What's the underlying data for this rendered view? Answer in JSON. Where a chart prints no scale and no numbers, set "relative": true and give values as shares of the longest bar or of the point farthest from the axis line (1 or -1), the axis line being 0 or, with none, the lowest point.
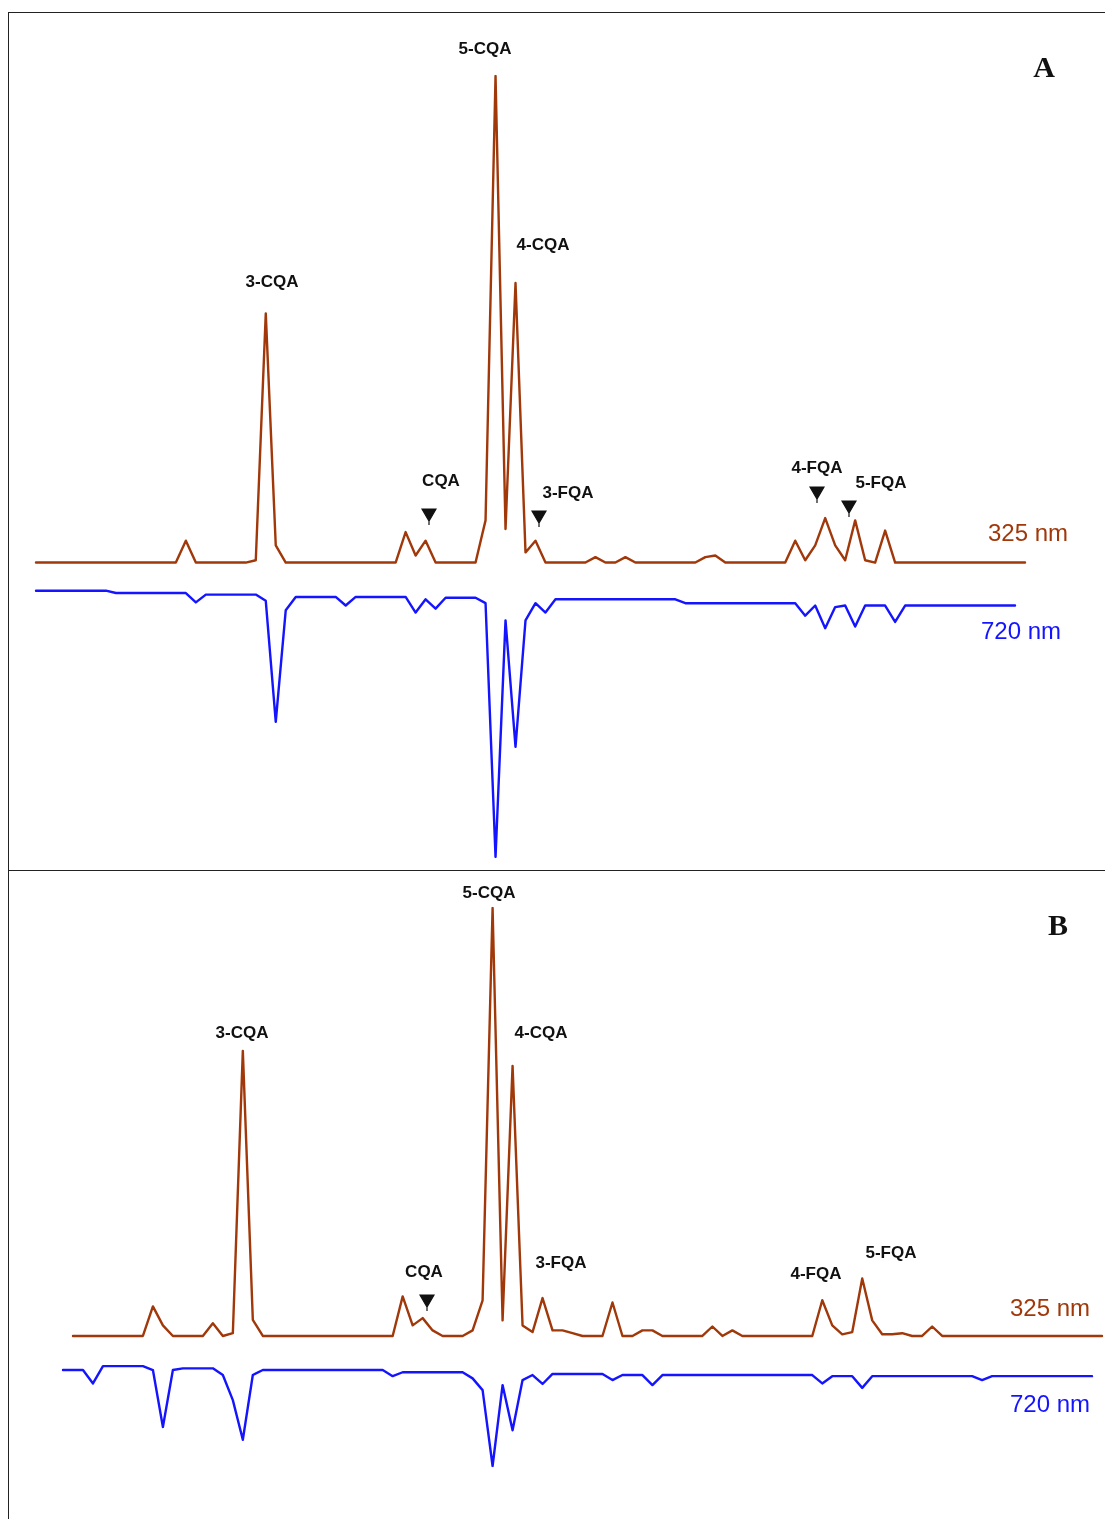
{
  "chart_data": [
    {
      "type": "line",
      "title": "A",
      "relative": true,
      "annotations": [
        "5-CQA",
        "3-CQA",
        "4-CQA",
        "CQA",
        "3-FQA",
        "4-FQA",
        "5-FQA"
      ],
      "categories": [
        null,
        null,
        null,
        null,
        null,
        null,
        null,
        null,
        null,
        null,
        null,
        null,
        null,
        null,
        null,
        null,
        null,
        null,
        null,
        null,
        null,
        null,
        null,
        null,
        null,
        null,
        null,
        null,
        null,
        null,
        null,
        null,
        null,
        null,
        null,
        null,
        null,
        null,
        null,
        null,
        null,
        null,
        null,
        null,
        null,
        null,
        null,
        null,
        null,
        null,
        null,
        null,
        null,
        null,
        null,
        null,
        null,
        null,
        null,
        null,
        null,
        null,
        null,
        null,
        null,
        null,
        null,
        null,
        null,
        null,
        null,
        null,
        null,
        null,
        null,
        null,
        null,
        null,
        null,
        null,
        null,
        null,
        null,
        null,
        null,
        null,
        null,
        null,
        null,
        null,
        null,
        null,
        null,
        null,
        null,
        null,
        null,
        null,
        null,
        null
      ],
      "series": [
        {
          "name": "325 nm",
          "color": "#a0380a",
          "values": [
            0.377,
            0.377,
            0.377,
            0.377,
            0.377,
            0.377,
            0.377,
            0.377,
            0.377,
            0.377,
            0.377,
            0.377,
            0.377,
            0.377,
            0.377,
            0.405,
            0.377,
            0.377,
            0.377,
            0.377,
            0.377,
            0.377,
            0.38,
            0.696,
            0.399,
            0.377,
            0.377,
            0.377,
            0.377,
            0.377,
            0.377,
            0.377,
            0.377,
            0.377,
            0.377,
            0.377,
            0.377,
            0.416,
            0.386,
            0.405,
            0.377,
            0.377,
            0.377,
            0.377,
            0.377,
            0.431,
            1,
            0.42,
            0.735,
            0.39,
            0.405,
            0.377,
            0.377,
            0.377,
            0.377,
            0.377,
            0.384,
            0.377,
            0.377,
            0.384,
            0.377,
            0.377,
            0.377,
            0.377,
            0.377,
            0.377,
            0.377,
            0.384,
            0.386,
            0.377,
            0.377,
            0.377,
            0.377,
            0.377,
            0.377,
            0.377,
            0.405,
            0.38,
            0.399,
            0.434,
            0.399,
            0.38,
            0.431,
            0.38,
            0.377,
            0.418,
            0.377,
            0.377,
            0.377,
            0.377,
            0.377,
            0.377,
            0.377,
            0.377,
            0.377,
            0.377,
            0.377,
            0.377,
            0.377,
            0.377
          ]
        },
        {
          "name": "720 nm",
          "color": "#1414ff",
          "values": [
            0.341,
            0.341,
            0.341,
            0.341,
            0.341,
            0.341,
            0.341,
            0.341,
            0.338,
            0.338,
            0.338,
            0.338,
            0.338,
            0.338,
            0.338,
            0.338,
            0.326,
            0.336,
            0.336,
            0.336,
            0.336,
            0.336,
            0.336,
            0.328,
            0.173,
            0.316,
            0.333,
            0.333,
            0.333,
            0.333,
            0.333,
            0.322,
            0.333,
            0.333,
            0.333,
            0.333,
            0.333,
            0.333,
            0.313,
            0.33,
            0.318,
            0.332,
            0.332,
            0.332,
            0.332,
            0.325,
            0,
            0.303,
            0.141,
            0.303,
            0.325,
            0.313,
            0.33,
            0.33,
            0.33,
            0.33,
            0.33,
            0.33,
            0.33,
            0.33,
            0.33,
            0.33,
            0.33,
            0.33,
            0.33,
            0.325,
            0.325,
            0.325,
            0.325,
            0.325,
            0.325,
            0.325,
            0.325,
            0.325,
            0.325,
            0.325,
            0.325,
            0.309,
            0.322,
            0.293,
            0.32,
            0.322,
            0.295,
            0.322,
            0.322,
            0.322,
            0.301,
            0.322,
            0.322,
            0.322,
            0.322,
            0.322,
            0.322,
            0.322,
            0.322,
            0.322,
            0.322,
            0.322,
            0.322,
            null
          ]
        }
      ]
    },
    {
      "type": "line",
      "title": "B",
      "relative": true,
      "annotations": [
        "5-CQA",
        "3-CQA",
        "4-CQA",
        "CQA",
        "3-FQA",
        "4-FQA",
        "5-FQA"
      ],
      "categories": [
        null,
        null,
        null,
        null,
        null,
        null,
        null,
        null,
        null,
        null,
        null,
        null,
        null,
        null,
        null,
        null,
        null,
        null,
        null,
        null,
        null,
        null,
        null,
        null,
        null,
        null,
        null,
        null,
        null,
        null,
        null,
        null,
        null,
        null,
        null,
        null,
        null,
        null,
        null,
        null,
        null,
        null,
        null,
        null,
        null,
        null,
        null,
        null,
        null,
        null,
        null,
        null,
        null,
        null,
        null,
        null,
        null,
        null,
        null,
        null,
        null,
        null,
        null,
        null,
        null,
        null,
        null,
        null,
        null,
        null,
        null,
        null,
        null,
        null,
        null,
        null,
        null,
        null,
        null,
        null,
        null,
        null,
        null,
        null,
        null,
        null,
        null,
        null,
        null,
        null,
        null,
        null,
        null,
        null,
        null,
        null,
        null,
        null,
        null,
        null,
        null,
        null,
        null,
        null,
        null
      ],
      "series": [
        {
          "name": "325 nm",
          "color": "#a0380a",
          "values": [
            null,
            0.233,
            0.233,
            0.233,
            0.233,
            0.233,
            0.233,
            0.233,
            0.233,
            0.286,
            0.252,
            0.233,
            0.233,
            0.233,
            0.233,
            0.256,
            0.233,
            0.238,
            0.744,
            0.262,
            0.233,
            0.233,
            0.233,
            0.233,
            0.233,
            0.233,
            0.233,
            0.233,
            0.233,
            0.233,
            0.233,
            0.233,
            0.233,
            0.233,
            0.304,
            0.252,
            0.265,
            0.243,
            0.233,
            0.233,
            0.233,
            0.243,
            0.297,
            1,
            0.261,
            0.717,
            0.252,
            0.24,
            0.301,
            0.243,
            0.243,
            0.238,
            0.233,
            0.233,
            0.233,
            0.293,
            0.233,
            0.233,
            0.243,
            0.243,
            0.233,
            0.233,
            0.233,
            0.233,
            0.233,
            0.25,
            0.233,
            0.243,
            0.233,
            0.233,
            0.233,
            0.233,
            0.233,
            0.233,
            0.233,
            0.233,
            0.297,
            0.252,
            0.236,
            0.24,
            0.336,
            0.261,
            0.236,
            0.236,
            0.238,
            0.233,
            0.233,
            0.25,
            0.233,
            0.233,
            0.233,
            0.233,
            0.233,
            0.233,
            0.233,
            0.233,
            0.233,
            0.233,
            0.233,
            0.233,
            0.233,
            0.233,
            0.233,
            0.233,
            0.233
          ]
        },
        {
          "name": "720 nm",
          "color": "#1414ff",
          "values": [
            0.172,
            0.172,
            0.172,
            0.148,
            0.179,
            0.179,
            0.179,
            0.179,
            0.179,
            0.172,
            0.07,
            0.172,
            0.175,
            0.175,
            0.175,
            0.175,
            0.163,
            0.118,
            0.047,
            0.163,
            0.172,
            0.172,
            0.172,
            0.172,
            0.172,
            0.172,
            0.172,
            0.172,
            0.172,
            0.172,
            0.172,
            0.172,
            0.172,
            0.161,
            0.168,
            0.168,
            0.168,
            0.168,
            0.168,
            0.168,
            0.168,
            0.157,
            0.136,
            0,
            0.145,
            0.064,
            0.154,
            0.163,
            0.147,
            0.165,
            0.165,
            0.165,
            0.165,
            0.165,
            0.165,
            0.154,
            0.163,
            0.163,
            0.163,
            0.145,
            0.163,
            0.163,
            0.163,
            0.163,
            0.163,
            0.163,
            0.163,
            0.163,
            0.163,
            0.163,
            0.163,
            0.163,
            0.163,
            0.163,
            0.163,
            0.163,
            0.148,
            0.161,
            0.161,
            0.161,
            0.14,
            0.161,
            0.161,
            0.161,
            0.161,
            0.161,
            0.161,
            0.161,
            0.161,
            0.161,
            0.161,
            0.161,
            0.154,
            0.161,
            0.161,
            0.161,
            0.161,
            0.161,
            0.161,
            0.161,
            0.161,
            0.161,
            0.161,
            0.161,
            null
          ]
        }
      ]
    }
  ]
}
